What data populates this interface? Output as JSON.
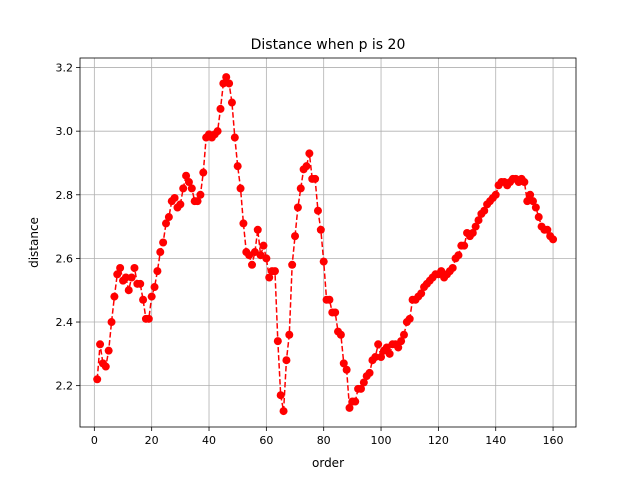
{
  "chart_data": {
    "type": "line",
    "title": "Distance when p is 20",
    "xlabel": "order",
    "ylabel": "distance",
    "xlim": [
      -5,
      168
    ],
    "ylim": [
      2.07,
      3.23
    ],
    "xticks": [
      0,
      20,
      40,
      60,
      80,
      100,
      120,
      140,
      160
    ],
    "yticks": [
      2.2,
      2.4,
      2.6,
      2.8,
      3.0,
      3.2
    ],
    "xtick_labels": [
      "0",
      "20",
      "40",
      "60",
      "80",
      "100",
      "120",
      "140",
      "160"
    ],
    "ytick_labels": [
      "2.2",
      "2.4",
      "2.6",
      "2.8",
      "3.0",
      "3.2"
    ],
    "grid": true,
    "line_style": "dashed",
    "marker": "circle",
    "color": "#ff0000",
    "series": [
      {
        "x": [
          1,
          2,
          3,
          4,
          5,
          6,
          7,
          8,
          9,
          10,
          11,
          12,
          13,
          14,
          15,
          16,
          17,
          18,
          19,
          20,
          21,
          22,
          23,
          24,
          25,
          26,
          27,
          28,
          29,
          30,
          31,
          32,
          33,
          34,
          35,
          36,
          37,
          38,
          39,
          40,
          41,
          42,
          43,
          44,
          45,
          46,
          47,
          48,
          49,
          50,
          51,
          52,
          53,
          54,
          55,
          56,
          57,
          58,
          59,
          60,
          61,
          62,
          63,
          64,
          65,
          66,
          67,
          68,
          69,
          70,
          71,
          72,
          73,
          74,
          75,
          76,
          77,
          78,
          79,
          80,
          81,
          82,
          83,
          84,
          85,
          86,
          87,
          88,
          89,
          90,
          91,
          92,
          93,
          94,
          95,
          96,
          97,
          98,
          99,
          100,
          101,
          102,
          103,
          104,
          105,
          106,
          107,
          108,
          109,
          110,
          111,
          112,
          113,
          114,
          115,
          116,
          117,
          118,
          119,
          120,
          121,
          122,
          123,
          124,
          125,
          126,
          127,
          128,
          129,
          130,
          131,
          132,
          133,
          134,
          135,
          136,
          137,
          138,
          139,
          140,
          141,
          142,
          143,
          144,
          145,
          146,
          147,
          148,
          149,
          150,
          151,
          152,
          153,
          154,
          155,
          156,
          157,
          158,
          159,
          160
        ],
        "values": [
          2.22,
          2.33,
          2.27,
          2.26,
          2.31,
          2.4,
          2.48,
          2.55,
          2.57,
          2.53,
          2.54,
          2.5,
          2.54,
          2.57,
          2.52,
          2.52,
          2.47,
          2.41,
          2.41,
          2.48,
          2.51,
          2.56,
          2.62,
          2.65,
          2.71,
          2.73,
          2.78,
          2.79,
          2.76,
          2.77,
          2.82,
          2.86,
          2.84,
          2.82,
          2.78,
          2.78,
          2.8,
          2.87,
          2.98,
          2.99,
          2.98,
          2.99,
          3.0,
          3.07,
          3.15,
          3.17,
          3.15,
          3.09,
          2.98,
          2.89,
          2.82,
          2.71,
          2.62,
          2.61,
          2.58,
          2.62,
          2.69,
          2.61,
          2.64,
          2.6,
          2.54,
          2.56,
          2.56,
          2.34,
          2.17,
          2.12,
          2.28,
          2.36,
          2.58,
          2.67,
          2.76,
          2.82,
          2.88,
          2.89,
          2.93,
          2.85,
          2.85,
          2.75,
          2.69,
          2.59,
          2.47,
          2.47,
          2.43,
          2.43,
          2.37,
          2.36,
          2.27,
          2.25,
          2.13,
          2.15,
          2.15,
          2.19,
          2.19,
          2.21,
          2.23,
          2.24,
          2.28,
          2.29,
          2.33,
          2.29,
          2.31,
          2.32,
          2.3,
          2.33,
          2.33,
          2.32,
          2.34,
          2.36,
          2.4,
          2.41,
          2.47,
          2.47,
          2.48,
          2.49,
          2.51,
          2.52,
          2.53,
          2.54,
          2.55,
          2.55,
          2.56,
          2.54,
          2.55,
          2.56,
          2.57,
          2.6,
          2.61,
          2.64,
          2.64,
          2.68,
          2.67,
          2.68,
          2.7,
          2.72,
          2.74,
          2.75,
          2.77,
          2.78,
          2.79,
          2.8,
          2.83,
          2.84,
          2.84,
          2.83,
          2.84,
          2.85,
          2.85,
          2.84,
          2.85,
          2.84,
          2.78,
          2.8,
          2.78,
          2.76,
          2.73,
          2.7,
          2.69,
          2.69,
          2.67,
          2.66
        ]
      }
    ]
  }
}
